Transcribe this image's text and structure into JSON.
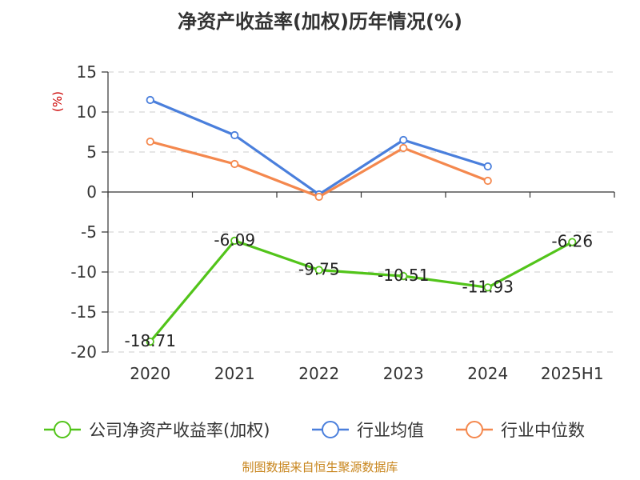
{
  "chart_data": {
    "type": "line",
    "title": "净资产收益率(加权)历年情况(%)",
    "ylabel": "(%)",
    "xlabel": "",
    "categories": [
      "2020",
      "2021",
      "2022",
      "2023",
      "2024",
      "2025H1"
    ],
    "ylim": [
      -20,
      15
    ],
    "yticks": [
      15,
      10,
      5,
      0,
      -5,
      -10,
      -15,
      -20
    ],
    "grid": true,
    "legend_position": "bottom",
    "series": [
      {
        "name": "公司净资产收益率(加权)",
        "color": "#52c41a",
        "values": [
          -18.71,
          -6.09,
          -9.75,
          -10.51,
          -11.93,
          -6.26
        ],
        "labels": [
          "-18.71",
          "-6.09",
          "-9.75",
          "-10.51",
          "-11.93",
          "-6.26"
        ]
      },
      {
        "name": "行业均值",
        "color": "#4a7fdc",
        "values": [
          11.5,
          7.1,
          -0.3,
          6.5,
          3.2,
          null
        ]
      },
      {
        "name": "行业中位数",
        "color": "#f4884e",
        "values": [
          6.3,
          3.5,
          -0.6,
          5.5,
          1.4,
          null
        ]
      }
    ]
  },
  "source": {
    "text": "制图数据来自恒生聚源数据库",
    "color": "#c8861e"
  },
  "ylabel_color": "#cc0000"
}
